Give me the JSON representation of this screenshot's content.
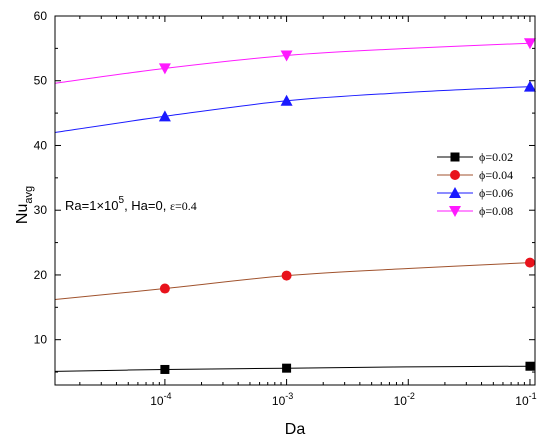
{
  "chart_data": {
    "type": "line",
    "xscale": "log",
    "x_ticks": [
      {
        "value": 0.0001,
        "base": "10",
        "exp": "-4"
      },
      {
        "value": 0.001,
        "base": "10",
        "exp": "-3"
      },
      {
        "value": 0.01,
        "base": "10",
        "exp": "-2"
      },
      {
        "value": 0.1,
        "base": "10",
        "exp": "-1"
      }
    ],
    "y_ticks": [
      10,
      20,
      30,
      40,
      50,
      60
    ],
    "xlim": [
      1.25e-05,
      0.11
    ],
    "ylim": [
      3,
      60
    ],
    "xlabel": "Da",
    "ylabel_main": "Nu",
    "ylabel_sub": "avg",
    "annotation": {
      "prefix": "Ra=1×10",
      "exp": "5",
      "mid": ", Ha=0, ",
      "eps": "ε=0.4"
    },
    "legend_position": "right",
    "series": [
      {
        "name": "ϕ=0.02",
        "color": "#000000",
        "marker": "square",
        "points_x": [
          0.0001,
          0.001,
          0.1
        ],
        "points_y": [
          5.4,
          5.6,
          5.9
        ],
        "curve_x": [
          1.25e-05,
          0.0001,
          0.001,
          0.01,
          0.1
        ],
        "curve_y": [
          5.1,
          5.4,
          5.6,
          5.8,
          5.9
        ]
      },
      {
        "name": "ϕ=0.04",
        "color": "#e8131c",
        "line_color": "#a0522d",
        "marker": "circle",
        "points_x": [
          0.0001,
          0.001,
          0.1
        ],
        "points_y": [
          17.9,
          19.9,
          21.9
        ],
        "curve_x": [
          1.25e-05,
          0.0001,
          0.001,
          0.01,
          0.1
        ],
        "curve_y": [
          16.2,
          17.9,
          19.9,
          21.0,
          21.9
        ]
      },
      {
        "name": "ϕ=0.06",
        "color": "#1a1aff",
        "marker": "triangle-up",
        "points_x": [
          0.0001,
          0.001,
          0.1
        ],
        "points_y": [
          44.5,
          46.9,
          49.1
        ],
        "curve_x": [
          1.25e-05,
          0.0001,
          0.001,
          0.01,
          0.1
        ],
        "curve_y": [
          42.0,
          44.5,
          46.9,
          48.2,
          49.1
        ]
      },
      {
        "name": "ϕ=0.08",
        "color": "#ff1aff",
        "marker": "triangle-down",
        "points_x": [
          0.0001,
          0.001,
          0.1
        ],
        "points_y": [
          51.9,
          53.9,
          55.8
        ],
        "curve_x": [
          1.25e-05,
          0.0001,
          0.001,
          0.01,
          0.1
        ],
        "curve_y": [
          49.6,
          51.9,
          53.9,
          55.0,
          55.8
        ]
      }
    ]
  }
}
